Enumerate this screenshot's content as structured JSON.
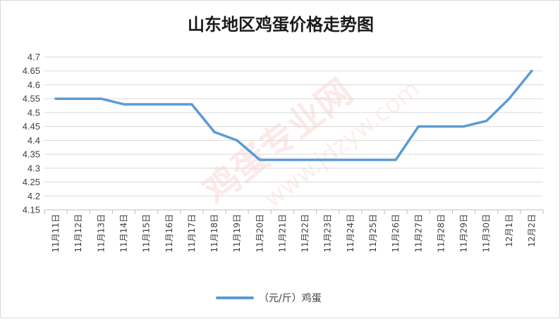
{
  "chart_data": {
    "type": "line",
    "title": "山东地区鸡蛋价格走势图",
    "categories": [
      "11月11日",
      "11月12日",
      "11月13日",
      "11月14日",
      "11月15日",
      "11月16日",
      "11月17日",
      "11月18日",
      "11月19日",
      "11月20日",
      "11月21日",
      "11月22日",
      "11月23日",
      "11月24日",
      "11月25日",
      "11月26日",
      "11月27日",
      "11月28日",
      "11月29日",
      "11月30日",
      "12月1日",
      "12月2日"
    ],
    "series": [
      {
        "name": "（元/斤）鸡蛋",
        "color": "#5b9bd5",
        "values": [
          4.55,
          4.55,
          4.55,
          4.53,
          4.53,
          4.53,
          4.53,
          4.43,
          4.4,
          4.33,
          4.33,
          4.33,
          4.33,
          4.33,
          4.33,
          4.33,
          4.45,
          4.45,
          4.45,
          4.47,
          4.55,
          4.65
        ]
      }
    ],
    "ylim": [
      4.15,
      4.7
    ],
    "yticks": [
      "4.7",
      "4.65",
      "4.6",
      "4.55",
      "4.5",
      "4.45",
      "4.4",
      "4.35",
      "4.3",
      "4.25",
      "4.2",
      "4.15"
    ],
    "grid": true,
    "legend": "bottom"
  },
  "watermark": {
    "text": "鸡蛋专业网",
    "url": "www.jdzyw.com",
    "color": "#e8342a"
  }
}
